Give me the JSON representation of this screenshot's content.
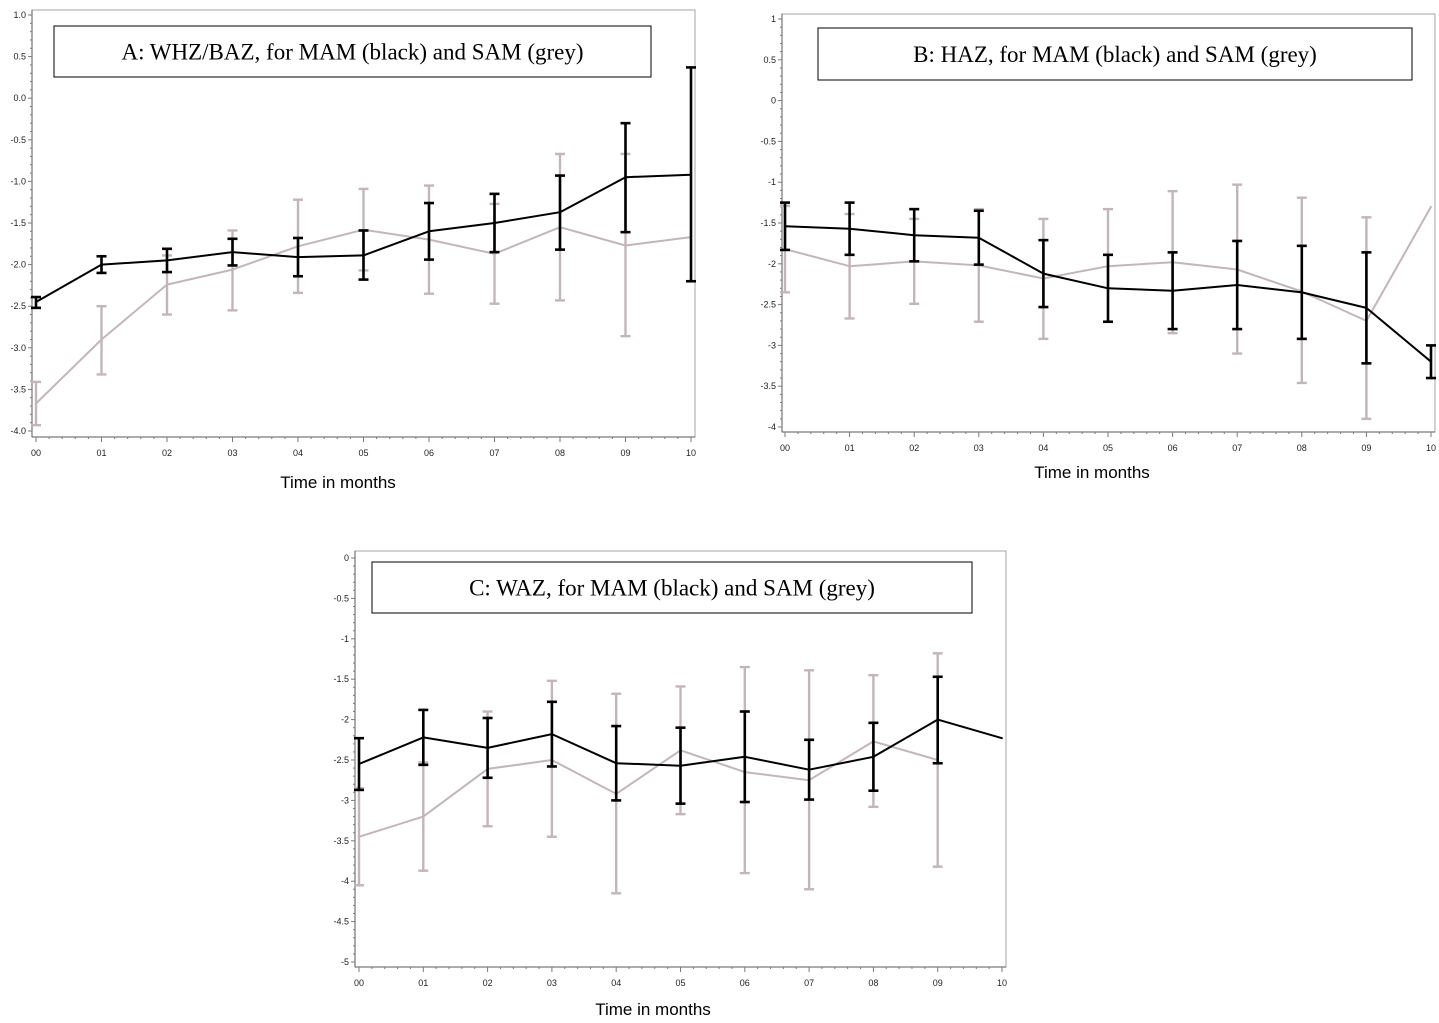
{
  "colors": {
    "mam": "#000000",
    "sam": "#c2b6b9"
  },
  "chart_data": [
    {
      "type": "line",
      "title": "A: WHZ/BAZ, for MAM (black) and SAM (grey)",
      "xlabel": "Time in months",
      "ylabel": "",
      "categories": [
        "00",
        "01",
        "02",
        "03",
        "04",
        "05",
        "06",
        "07",
        "08",
        "09",
        "10"
      ],
      "y_ticks": [
        "1.0",
        "0.5",
        "0.0",
        "-0.5",
        "-1.0",
        "-1.5",
        "-2.0",
        "-2.5",
        "-3.0",
        "-3.5",
        "-4.0"
      ],
      "ylim": [
        -4.0,
        1.0
      ],
      "grid": false,
      "series": [
        {
          "name": "SAM",
          "color": "#c2b6b9",
          "values": [
            -3.67,
            -2.9,
            -2.24,
            -2.06,
            -1.78,
            -1.58,
            -1.7,
            -1.87,
            -1.55,
            -1.77,
            -1.67
          ],
          "lower": [
            -3.93,
            -3.32,
            -2.6,
            -2.55,
            -2.34,
            -2.07,
            -2.35,
            -2.47,
            -2.43,
            -2.86,
            null
          ],
          "upper": [
            -3.41,
            -2.5,
            -1.89,
            -1.59,
            -1.22,
            -1.09,
            -1.05,
            -1.27,
            -0.67,
            -0.67,
            null
          ]
        },
        {
          "name": "MAM",
          "color": "#000000",
          "values": [
            -2.45,
            -2.0,
            -1.95,
            -1.85,
            -1.91,
            -1.89,
            -1.6,
            -1.5,
            -1.37,
            -0.95,
            -0.92
          ],
          "lower": [
            -2.52,
            -2.1,
            -2.09,
            -2.01,
            -2.14,
            -2.18,
            -1.94,
            -1.85,
            -1.82,
            -1.61,
            -2.2
          ],
          "upper": [
            -2.39,
            -1.9,
            -1.81,
            -1.69,
            -1.68,
            -1.59,
            -1.26,
            -1.15,
            -0.93,
            -0.3,
            0.37
          ]
        }
      ]
    },
    {
      "type": "line",
      "title": "B: HAZ, for MAM (black) and SAM (grey)",
      "xlabel": "Time in months",
      "ylabel": "",
      "categories": [
        "00",
        "01",
        "02",
        "03",
        "04",
        "05",
        "06",
        "07",
        "08",
        "09",
        "10"
      ],
      "y_ticks": [
        "1",
        "0.5",
        "0",
        "-0.5",
        "-1",
        "-1.5",
        "-2",
        "-2.5",
        "-3",
        "-3.5",
        "-4"
      ],
      "ylim": [
        -4.0,
        1.0
      ],
      "grid": false,
      "series": [
        {
          "name": "SAM",
          "color": "#c2b6b9",
          "values": [
            -1.82,
            -2.03,
            -1.97,
            -2.02,
            -2.18,
            -2.03,
            -1.98,
            -2.07,
            -2.34,
            -2.7,
            -1.3
          ],
          "lower": [
            -2.35,
            -2.67,
            -2.49,
            -2.71,
            -2.92,
            null,
            -2.85,
            -3.1,
            -3.46,
            -3.9,
            null
          ],
          "upper": [
            -1.29,
            -1.39,
            -1.45,
            -1.33,
            -1.45,
            -1.33,
            -1.11,
            -1.03,
            -1.19,
            -1.43,
            null
          ]
        },
        {
          "name": "MAM",
          "color": "#000000",
          "values": [
            -1.54,
            -1.57,
            -1.65,
            -1.68,
            -2.12,
            -2.3,
            -2.33,
            -2.26,
            -2.35,
            -2.54,
            -3.2
          ],
          "lower": [
            -1.83,
            -1.89,
            -1.97,
            -2.01,
            -2.53,
            -2.71,
            -2.8,
            -2.8,
            -2.92,
            -3.22,
            -3.4
          ],
          "upper": [
            -1.25,
            -1.25,
            -1.33,
            -1.35,
            -1.71,
            -1.89,
            -1.86,
            -1.72,
            -1.78,
            -1.86,
            -3.0
          ]
        }
      ]
    },
    {
      "type": "line",
      "title": "C: WAZ, for MAM (black) and SAM (grey)",
      "xlabel": "Time in months",
      "ylabel": "",
      "categories": [
        "00",
        "01",
        "02",
        "03",
        "04",
        "05",
        "06",
        "07",
        "08",
        "09",
        "10"
      ],
      "y_ticks": [
        "0",
        "-0.5",
        "-1",
        "-1.5",
        "-2",
        "-2.5",
        "-3",
        "-3.5",
        "-4",
        "-4.5",
        "-5"
      ],
      "ylim": [
        -5.0,
        0.0
      ],
      "grid": false,
      "series": [
        {
          "name": "SAM",
          "color": "#c2b6b9",
          "values": [
            -3.45,
            -3.2,
            -2.61,
            -2.5,
            -2.92,
            -2.38,
            -2.65,
            -2.75,
            -2.27,
            -2.5,
            null
          ],
          "lower": [
            -4.05,
            -3.87,
            -3.32,
            -3.45,
            -4.15,
            -3.17,
            -3.9,
            -4.1,
            -3.08,
            -3.82,
            null
          ],
          "upper": [
            -2.85,
            -2.53,
            -1.9,
            -1.52,
            -1.68,
            -1.59,
            -1.35,
            -1.39,
            -1.45,
            -1.18,
            null
          ]
        },
        {
          "name": "MAM",
          "color": "#000000",
          "values": [
            -2.55,
            -2.22,
            -2.35,
            -2.18,
            -2.54,
            -2.57,
            -2.46,
            -2.62,
            -2.46,
            -2.0,
            -2.23
          ],
          "lower": [
            -2.87,
            -2.56,
            -2.72,
            -2.58,
            -3.0,
            -3.04,
            -3.02,
            -2.99,
            -2.88,
            -2.54,
            null
          ],
          "upper": [
            -2.23,
            -1.88,
            -1.98,
            -1.78,
            -2.08,
            -2.1,
            -1.9,
            -2.25,
            -2.04,
            -1.47,
            null
          ]
        }
      ]
    }
  ]
}
